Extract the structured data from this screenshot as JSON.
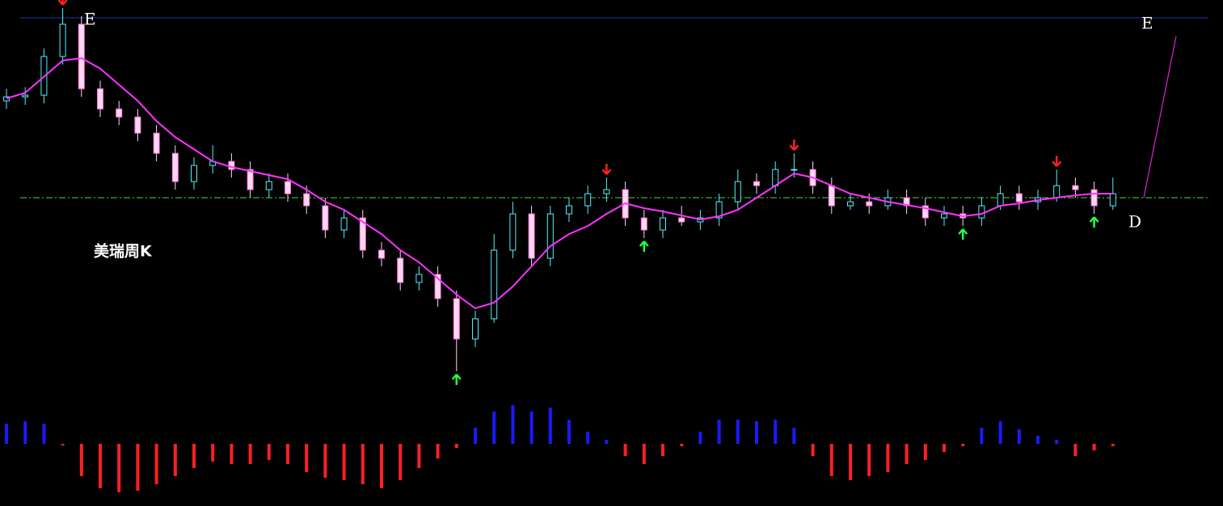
{
  "chart_data": [
    {
      "type": "candlestick",
      "open": [
        32.5,
        33,
        33.2,
        38,
        42,
        34,
        31.5,
        30.5,
        28.5,
        26,
        22.5,
        24.5,
        25,
        24,
        21.5,
        22.5,
        21,
        19.5,
        16.5,
        18,
        14,
        13,
        10,
        11,
        8,
        3,
        5.5,
        14,
        18.5,
        13,
        18.5,
        19.5,
        21,
        21.5,
        18,
        16.5,
        18,
        17.5,
        18,
        20,
        22.5,
        22,
        24,
        24,
        22,
        19.5,
        20,
        19.5,
        20.5,
        19.5,
        18,
        18.5,
        18,
        19.5,
        21,
        20,
        20.5,
        22,
        21.5,
        19.5
      ],
      "high": [
        34,
        34.2,
        39,
        44,
        43,
        35,
        32.5,
        31.5,
        29.5,
        27,
        25.5,
        27,
        26,
        25,
        23.5,
        23.5,
        22,
        20.5,
        19,
        19,
        15,
        14,
        12,
        12,
        9,
        6.5,
        16,
        20,
        19.5,
        19.5,
        20.5,
        22,
        23,
        22.5,
        19,
        19,
        19.5,
        19,
        21,
        24,
        23.5,
        25,
        26,
        25,
        23,
        21,
        21,
        21.5,
        21.5,
        20.5,
        19.5,
        19.5,
        20.5,
        22,
        22,
        21.5,
        24,
        23,
        22.5,
        23
      ],
      "low": [
        31.5,
        32,
        32.2,
        37,
        33,
        30.5,
        29.5,
        27.5,
        25,
        21.5,
        21.5,
        23.5,
        23,
        20.5,
        20.5,
        20,
        18.5,
        15.5,
        15.5,
        13,
        12,
        9,
        9,
        7,
        -1,
        2,
        5,
        13,
        12,
        12,
        17.5,
        18.5,
        20,
        17,
        15.5,
        15.5,
        17,
        16.5,
        17,
        19,
        21,
        21,
        23,
        21,
        18.5,
        19,
        18.5,
        19,
        18.5,
        17,
        17,
        17,
        17,
        19,
        19,
        19,
        20,
        20.5,
        18.5,
        19
      ],
      "close": [
        33,
        33.2,
        38,
        42,
        34,
        31.5,
        30.5,
        28.5,
        26,
        22.5,
        24.5,
        25,
        24,
        21.5,
        22.5,
        21,
        19.5,
        16.5,
        18,
        14,
        13,
        10,
        11,
        8,
        3,
        5.5,
        14,
        18.5,
        13,
        18.5,
        19.5,
        21,
        21.5,
        18,
        16.5,
        18,
        17.5,
        18,
        20,
        22.5,
        22,
        24,
        24,
        22,
        19.5,
        20,
        19.5,
        20.5,
        19.5,
        18,
        18.5,
        18,
        19.5,
        21,
        20,
        20.5,
        22,
        21.5,
        19.5,
        21
      ],
      "up_color": "#54f0ff",
      "down_color": "#ffd8f4",
      "ylim": [
        -3,
        44
      ],
      "overlays": [
        {
          "color": "#ff33ff",
          "values": [
            32.8,
            33.5,
            35.5,
            37.5,
            37.8,
            36.5,
            34.5,
            32.5,
            30,
            28,
            26.5,
            25,
            24.3,
            23.8,
            23.3,
            22.8,
            21.5,
            20,
            19,
            17.5,
            16,
            14,
            12.5,
            10.5,
            8.5,
            6.8,
            7.5,
            9.5,
            12,
            14.5,
            16,
            17,
            18.5,
            19.8,
            19.2,
            18.8,
            18.3,
            17.8,
            18.2,
            19,
            20.5,
            22,
            23.5,
            23,
            22,
            21,
            20.5,
            20,
            19.6,
            19.2,
            18.7,
            18.2,
            18.5,
            19.5,
            19.8,
            20.2,
            20.5,
            20.8,
            21,
            21
          ]
        }
      ],
      "hlines": [
        {
          "value": 42.8,
          "color": "#1d3aa8",
          "style": "solid"
        },
        {
          "value": 20.5,
          "color": "#44dd44",
          "style": "dashdot"
        }
      ],
      "signals": [
        {
          "index": 3,
          "kind": "sell",
          "color": "#ff2020"
        },
        {
          "index": 32,
          "kind": "sell",
          "color": "#ff2020"
        },
        {
          "index": 42,
          "kind": "sell",
          "color": "#ff2020"
        },
        {
          "index": 56,
          "kind": "sell",
          "color": "#ff2020"
        },
        {
          "index": 24,
          "kind": "buy",
          "color": "#22ff44"
        },
        {
          "index": 34,
          "kind": "buy",
          "color": "#22ff44"
        },
        {
          "index": 51,
          "kind": "buy",
          "color": "#22ff44"
        },
        {
          "index": 58,
          "kind": "buy",
          "color": "#22ff44"
        }
      ],
      "annotations": [
        "E",
        "E",
        "D",
        "美瑞周K"
      ]
    },
    {
      "type": "bar",
      "values": [
        25,
        28,
        25,
        -2,
        -40,
        -55,
        -60,
        -58,
        -50,
        -40,
        -30,
        -22,
        -25,
        -25,
        -20,
        -25,
        -35,
        -42,
        -45,
        -50,
        -55,
        -45,
        -30,
        -18,
        -5,
        20,
        40,
        48,
        40,
        45,
        30,
        15,
        5,
        -15,
        -25,
        -15,
        -3,
        15,
        30,
        30,
        28,
        30,
        20,
        -15,
        -40,
        -45,
        -40,
        -35,
        -25,
        -20,
        -10,
        -3,
        20,
        28,
        18,
        10,
        5,
        -15,
        -8,
        -3
      ],
      "pos_color": "#1a1aff",
      "neg_color": "#ff2020",
      "ylim": [
        -65,
        65
      ]
    }
  ]
}
